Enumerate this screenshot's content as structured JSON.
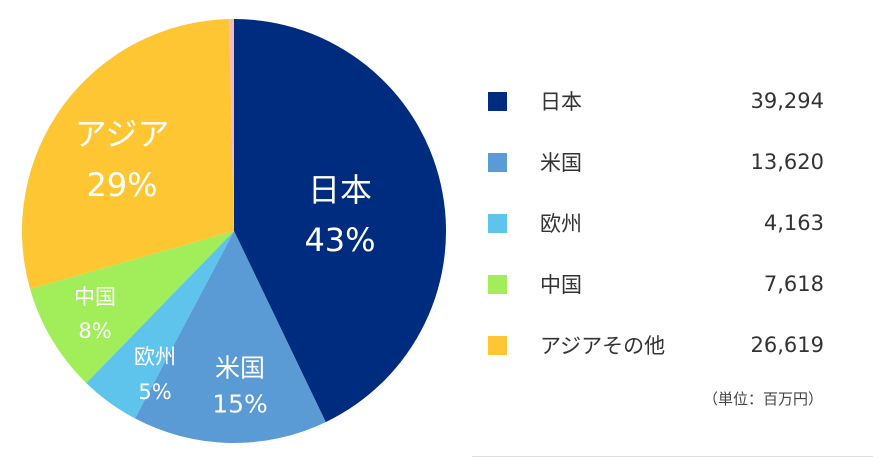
{
  "chart_data": {
    "type": "pie",
    "legend_placement": "right",
    "unit_note": "（単位：百万円）",
    "slices": [
      {
        "label": "日本",
        "legend_label": "日本",
        "value": 39294,
        "value_label": "39,294",
        "percent_label": "43%",
        "color": "#002c7f"
      },
      {
        "label": "米国",
        "legend_label": "米国",
        "value": 13620,
        "value_label": "13,620",
        "percent_label": "15%",
        "color": "#5b9bd5"
      },
      {
        "label": "欧州",
        "legend_label": "欧州",
        "value": 4163,
        "value_label": "4,163",
        "percent_label": "5%",
        "color": "#5ec4ec"
      },
      {
        "label": "中国",
        "legend_label": "中国",
        "value": 7618,
        "value_label": "7,618",
        "percent_label": "8%",
        "color": "#a2ee5a"
      },
      {
        "label": "アジア",
        "legend_label": "アジアその他",
        "value": 26619,
        "value_label": "26,619",
        "percent_label": "29%",
        "color": "#fdc632"
      }
    ]
  }
}
